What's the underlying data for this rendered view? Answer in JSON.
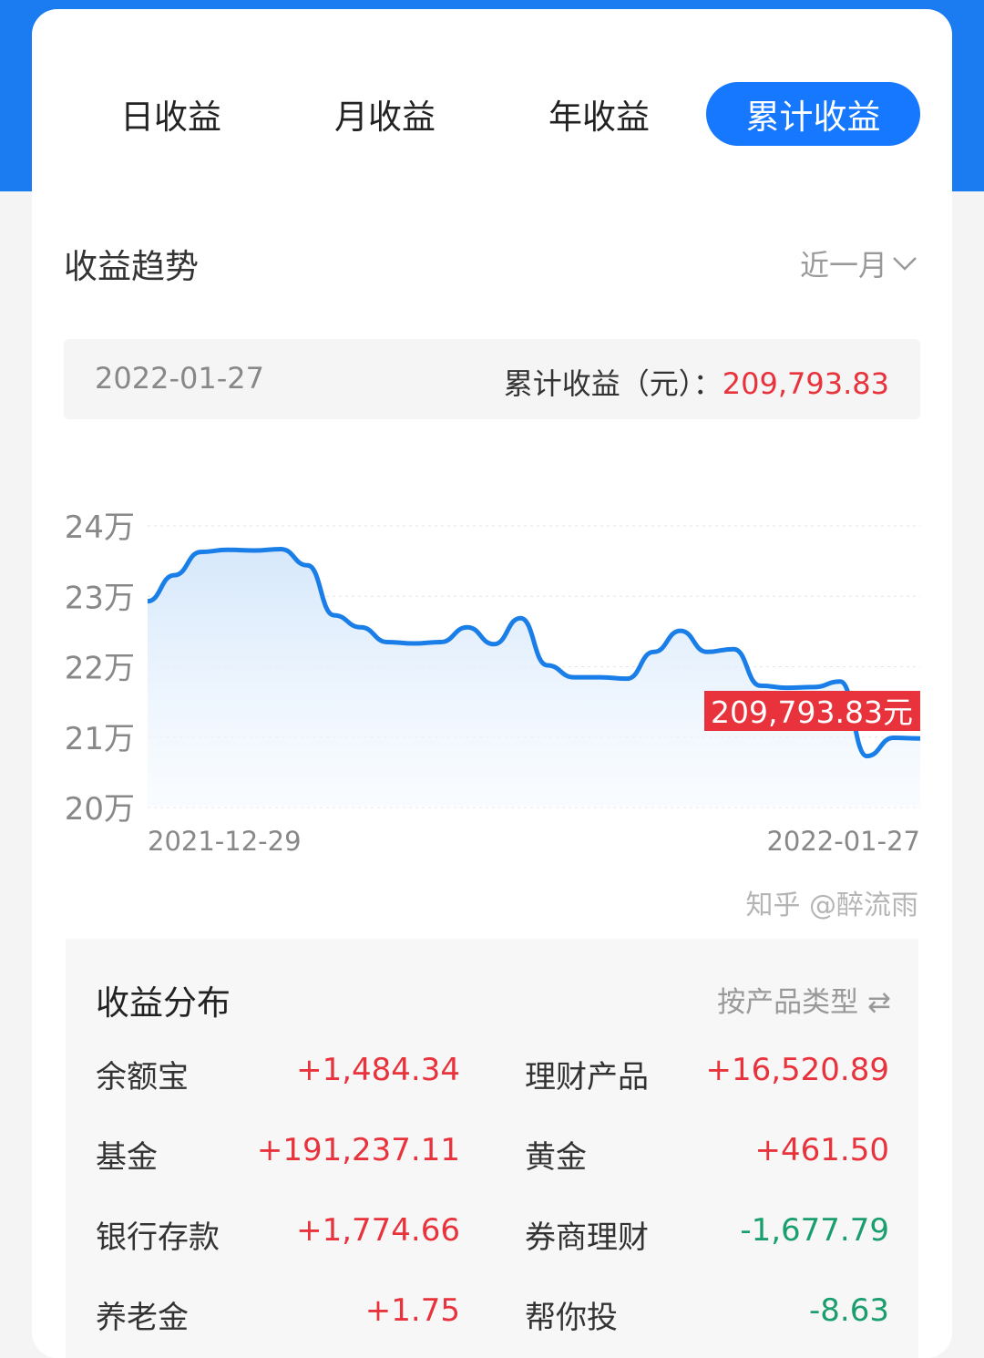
{
  "tabs": [
    {
      "label": "日收益",
      "active": false
    },
    {
      "label": "月收益",
      "active": false
    },
    {
      "label": "年收益",
      "active": false
    },
    {
      "label": "累计收益",
      "active": true
    }
  ],
  "trend": {
    "title": "收益趋势",
    "range": "近一月",
    "range_icon": "chevron-down-icon"
  },
  "summary": {
    "date": "2022-01-27",
    "label": "累计收益（元）：",
    "value": "209,793.83"
  },
  "chart_data": {
    "type": "area",
    "x_start": "2021-12-29",
    "x_end": "2022-01-27",
    "x_tick_labels": [
      "2021-12-29",
      "2022-01-27"
    ],
    "y_tick_labels": [
      "24万",
      "23万",
      "22万",
      "21万",
      "20万"
    ],
    "ylim": [
      20,
      24
    ],
    "y_unit": "万",
    "values": [
      22.93,
      23.3,
      23.63,
      23.66,
      23.65,
      23.67,
      23.44,
      22.73,
      22.56,
      22.35,
      22.33,
      22.35,
      22.56,
      22.32,
      22.69,
      22.02,
      21.85,
      21.85,
      21.83,
      22.21,
      22.51,
      22.21,
      22.25,
      21.73,
      21.7,
      21.71,
      21.79,
      20.73,
      20.99,
      20.98
    ],
    "tooltip": "209,793.83元",
    "grid": true,
    "line_color": "#1a7ee8",
    "tooltip_color": "#e8323c"
  },
  "distribution": {
    "title": "收益分布",
    "switch_label": "按产品类型 ⇄",
    "items": [
      {
        "name": "余额宝",
        "value": "+1,484.34",
        "sign": "pos"
      },
      {
        "name": "理财产品",
        "value": "+16,520.89",
        "sign": "pos"
      },
      {
        "name": "基金",
        "value": "+191,237.11",
        "sign": "pos"
      },
      {
        "name": "黄金",
        "value": "+461.50",
        "sign": "pos"
      },
      {
        "name": "银行存款",
        "value": "+1,774.66",
        "sign": "pos"
      },
      {
        "name": "券商理财",
        "value": "-1,677.79",
        "sign": "neg"
      },
      {
        "name": "养老金",
        "value": "+1.75",
        "sign": "pos"
      },
      {
        "name": "帮你投",
        "value": "-8.63",
        "sign": "neg"
      }
    ]
  },
  "watermark": "知乎 @醉流雨",
  "colors": {
    "brand": "#1677ff",
    "positive": "#e8323c",
    "negative": "#1a9e6e"
  }
}
